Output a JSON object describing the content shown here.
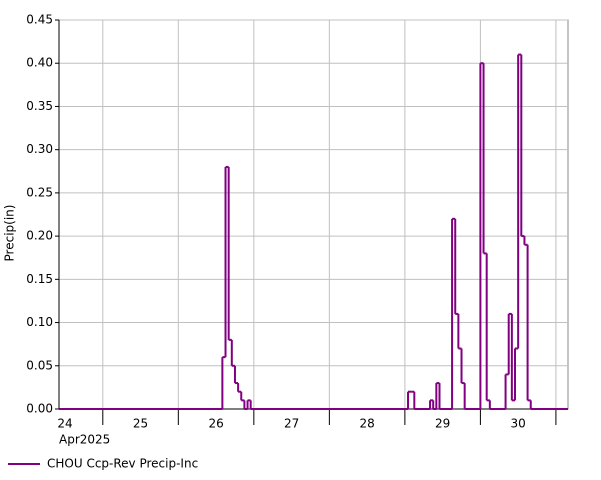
{
  "chart_data": {
    "type": "step",
    "y_label": "Precip(in)",
    "x_sublabel": "Apr2025",
    "x_day_labels": [
      24,
      25,
      26,
      27,
      28,
      29,
      30
    ],
    "xlim": [
      24.42,
      31.16
    ],
    "xticks": [
      25,
      26,
      27,
      28,
      29,
      30,
      31
    ],
    "ylim": [
      0,
      0.45
    ],
    "yticks": [
      {
        "value": 0,
        "label": "0.00"
      },
      {
        "value": 0.05,
        "label": "0.05"
      },
      {
        "value": 0.1,
        "label": "0.10"
      },
      {
        "value": 0.15,
        "label": "0.15"
      },
      {
        "value": 0.2,
        "label": "0.20"
      },
      {
        "value": 0.25,
        "label": "0.25"
      },
      {
        "value": 0.3,
        "label": "0.30"
      },
      {
        "value": 0.35,
        "label": "0.35"
      },
      {
        "value": 0.4,
        "label": "0.40"
      },
      {
        "value": 0.45,
        "label": "0.45"
      }
    ],
    "grid": true,
    "series": [
      {
        "name": "CHOU Ccp-Rev Precip-Inc",
        "color": "#800080",
        "x": [
          24.42,
          26.5833,
          26.625,
          26.6667,
          26.7083,
          26.75,
          26.7917,
          26.8333,
          26.875,
          26.9167,
          26.9583,
          29.0417,
          29.0833,
          29.125,
          29.3333,
          29.375,
          29.4167,
          29.4583,
          29.625,
          29.6667,
          29.7083,
          29.75,
          29.7917,
          30.0,
          30.0417,
          30.0833,
          30.125,
          30.3333,
          30.375,
          30.4167,
          30.4583,
          30.5,
          30.5417,
          30.5833,
          30.625,
          30.6667
        ],
        "values": [
          0,
          0.06,
          0.28,
          0.08,
          0.05,
          0.03,
          0.02,
          0.01,
          0,
          0.01,
          0,
          0.02,
          0.02,
          0,
          0.01,
          0,
          0.03,
          0,
          0.22,
          0.11,
          0.07,
          0.03,
          0,
          0.4,
          0.18,
          0.01,
          0,
          0.04,
          0.11,
          0.01,
          0.07,
          0.41,
          0.2,
          0.19,
          0.01,
          0
        ]
      }
    ]
  }
}
